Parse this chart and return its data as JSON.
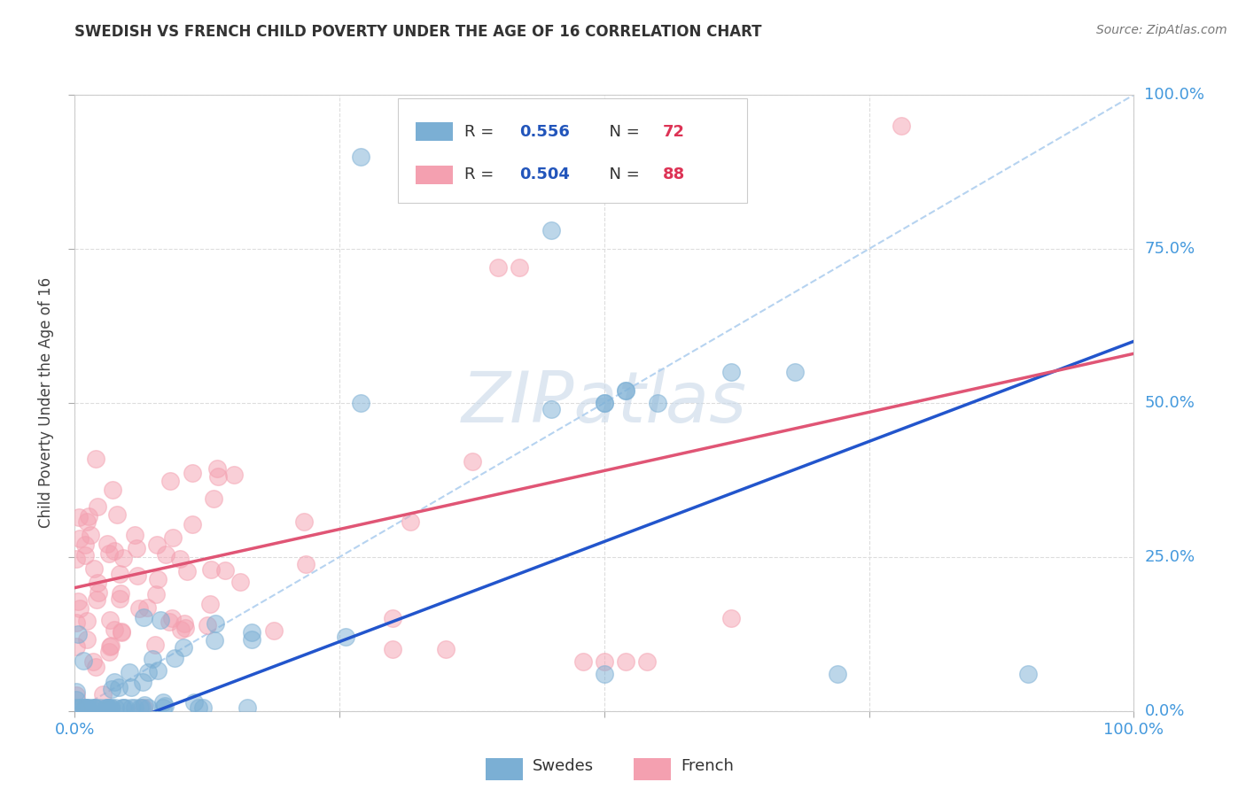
{
  "title": "SWEDISH VS FRENCH CHILD POVERTY UNDER THE AGE OF 16 CORRELATION CHART",
  "source": "Source: ZipAtlas.com",
  "ylabel": "Child Poverty Under the Age of 16",
  "xlim": [
    0,
    1
  ],
  "ylim": [
    0,
    1
  ],
  "xticks": [
    0,
    0.25,
    0.5,
    0.75,
    1.0
  ],
  "yticks": [
    0,
    0.25,
    0.5,
    0.75,
    1.0
  ],
  "xtick_labels": [
    "0.0%",
    "",
    "",
    "",
    "100.0%"
  ],
  "ytick_labels": [
    "0.0%",
    "25.0%",
    "50.0%",
    "75.0%",
    "100.0%"
  ],
  "swedish_color": "#7BAFD4",
  "french_color": "#F4A0B0",
  "swedish_line_color": "#2255CC",
  "french_line_color": "#E05575",
  "swedish_R": 0.556,
  "swedish_N": 72,
  "french_R": 0.504,
  "french_N": 88,
  "watermark": "ZIPatlas",
  "background_color": "#FFFFFF",
  "grid_color": "#DDDDDD",
  "tick_color": "#4499DD",
  "legend_R_color": "#2255BB",
  "legend_N_color": "#DD3355",
  "title_color": "#333333",
  "ylabel_color": "#444444",
  "diag_color": "#BBBBBB",
  "sw_trend_intercept": -0.05,
  "sw_trend_slope": 0.65,
  "fr_trend_intercept": 0.2,
  "fr_trend_slope": 0.38
}
